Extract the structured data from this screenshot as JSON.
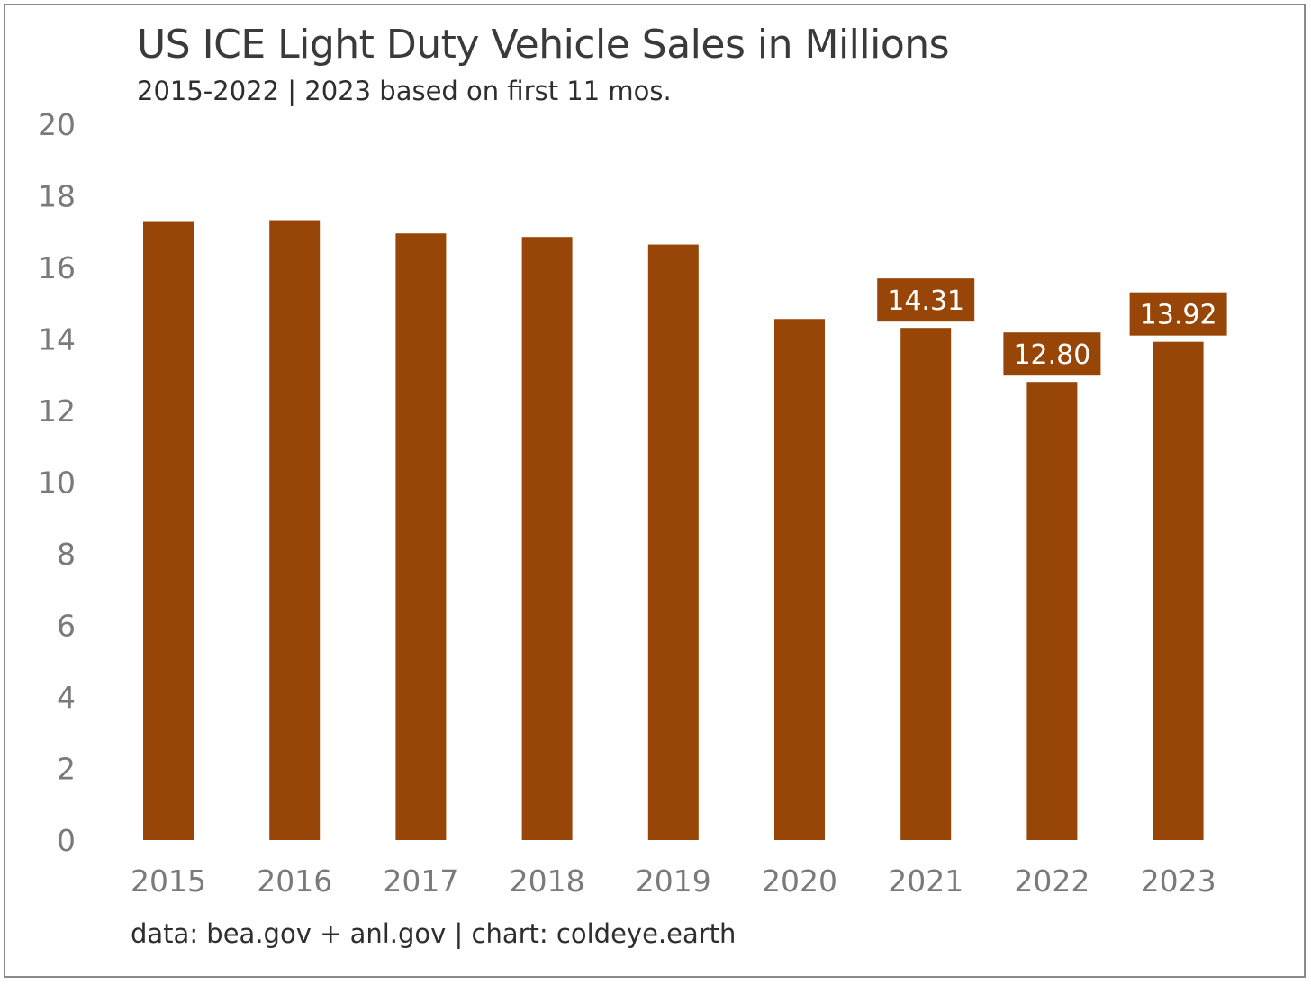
{
  "colors": {
    "bar": "#974607",
    "tick_text": "#7a7a7a",
    "title_text": "#3a3a3a",
    "border": "#8a8a8a",
    "label_text": "#ffffff"
  },
  "chart_data": {
    "type": "bar",
    "title": "US ICE Light Duty Vehicle Sales in Millions",
    "subtitle": "2015-2022 | 2023 based on first 11 mos.",
    "source": "data: bea.gov + anl.gov | chart: coldeye.earth",
    "categories": [
      "2015",
      "2016",
      "2017",
      "2018",
      "2019",
      "2020",
      "2021",
      "2022",
      "2023"
    ],
    "values": [
      17.27,
      17.32,
      16.95,
      16.85,
      16.64,
      14.56,
      14.31,
      12.8,
      13.92
    ],
    "data_labels": [
      "",
      "",
      "",
      "",
      "",
      "",
      "14.31",
      "12.80",
      "13.92"
    ],
    "yticks": [
      "0",
      "2",
      "4",
      "6",
      "8",
      "10",
      "12",
      "14",
      "16",
      "18",
      "20"
    ],
    "ylim": [
      0,
      20
    ],
    "grid": false,
    "legend": "none"
  }
}
